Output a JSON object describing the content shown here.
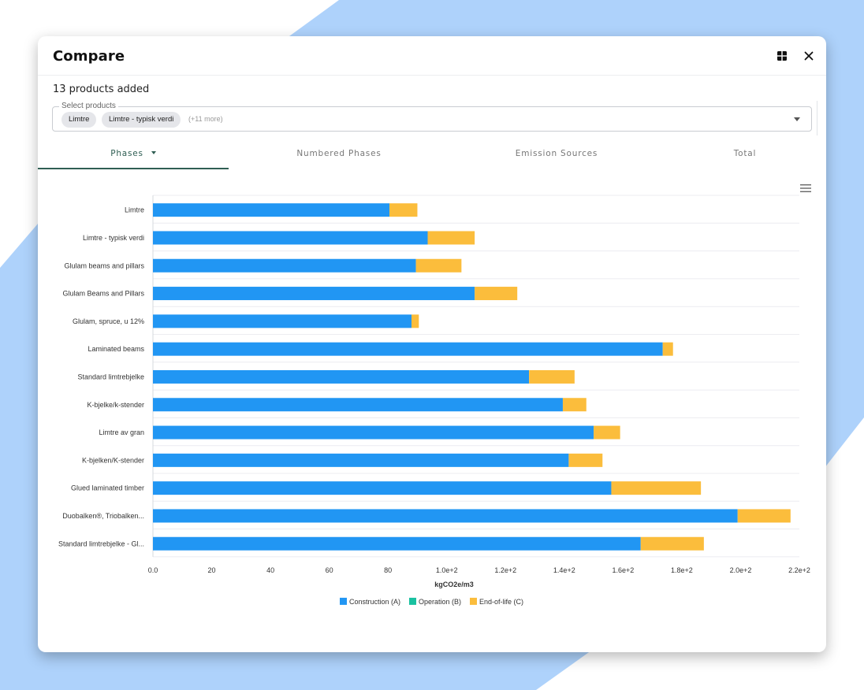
{
  "window": {
    "title": "Compare",
    "products_count_text": "13 products added"
  },
  "header_icons": {
    "layout_icon": "grid-icon",
    "close_icon": "close-icon"
  },
  "product_select": {
    "label": "Select products",
    "chips": [
      "Limtre",
      "Limtre - typisk verdi"
    ],
    "more_text": "(+11 more)"
  },
  "tabs": [
    {
      "label": "Phases",
      "active": true
    },
    {
      "label": "Numbered Phases",
      "active": false
    },
    {
      "label": "Emission Sources",
      "active": false
    },
    {
      "label": "Total",
      "active": false
    }
  ],
  "colors": {
    "construction": "#2196f3",
    "operation": "#19c1a0",
    "end_of_life": "#fbbd3c",
    "accent": "#2f5e53",
    "background_shape": "#aed2fb"
  },
  "chart_data": {
    "type": "bar",
    "orientation": "horizontal",
    "stacked": true,
    "xlabel": "kgCO2e/m3",
    "xlim": [
      0,
      220
    ],
    "x_ticks": [
      0,
      20,
      40,
      60,
      80,
      100,
      120,
      140,
      160,
      180,
      200,
      220
    ],
    "x_tick_labels": [
      "0.0",
      "20",
      "40",
      "60",
      "80",
      "1.0e+2",
      "1.2e+2",
      "1.4e+2",
      "1.6e+2",
      "1.8e+2",
      "2.0e+2",
      "2.2e+2"
    ],
    "categories": [
      "Limtre",
      "Limtre - typisk verdi",
      "Glulam beams and pillars",
      "Glulam Beams and Pillars",
      "Glulam, spruce, u 12%",
      "Laminated beams",
      "Standard limtrebjelke",
      "K-bjelke/k-stender",
      "Limtre av gran",
      "K-bjelken/K-stender",
      "Glued laminated timber",
      "Duobalken®, Triobalken...",
      "Standard limtrebjelke - Gl..."
    ],
    "series": [
      {
        "name": "Construction (A)",
        "values": [
          80.5,
          93.5,
          89.5,
          109.5,
          88,
          173.5,
          128,
          139.5,
          150,
          141.5,
          156,
          199,
          166
        ]
      },
      {
        "name": "Operation (B)",
        "values": [
          0,
          0,
          0,
          0,
          0,
          0,
          0,
          0,
          0,
          0,
          0,
          0,
          0
        ]
      },
      {
        "name": "End-of-life (C)",
        "values": [
          9.5,
          16,
          15.5,
          14.5,
          2.5,
          3.5,
          15.5,
          8,
          9,
          11.5,
          30.5,
          18,
          21.5
        ]
      }
    ],
    "legend": [
      "Construction (A)",
      "Operation (B)",
      "End-of-life (C)"
    ],
    "legend_position": "bottom",
    "grid": true
  }
}
